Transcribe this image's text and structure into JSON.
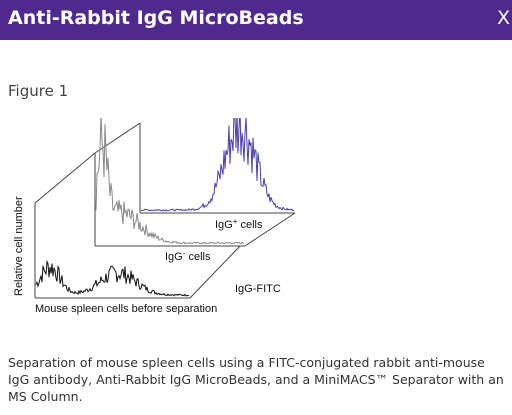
{
  "header": {
    "title": "Anti-Rabbit IgG MicroBeads",
    "close": "X"
  },
  "figure": {
    "label": "Figure 1",
    "y_axis_label": "Relative cell number",
    "x_axis_label": "Mouse spleen cells before separation",
    "marker_label": "IgG-FITC",
    "positive_label": {
      "base": "IgG",
      "sup": "+",
      "rest": " cells"
    },
    "negative_label": {
      "base": "IgG",
      "sup": "-",
      "rest": " cells"
    }
  },
  "caption": "Separation of mouse spleen cells using a FITC-conjugated rabbit anti-mouse IgG antibody, Anti-Rabbit IgG MicroBeads, and a MiniMACS™ Separator with an MS Column."
}
